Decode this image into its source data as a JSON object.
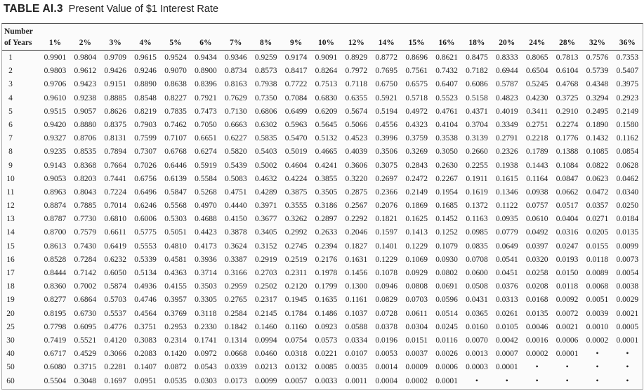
{
  "title": {
    "label": "TABLE AI.3",
    "text": "Present Value of $1 Interest Rate"
  },
  "table": {
    "years_header": {
      "line1": "Number",
      "line2": "of Years"
    },
    "rates": [
      "1%",
      "2%",
      "3%",
      "4%",
      "5%",
      "6%",
      "7%",
      "8%",
      "9%",
      "10%",
      "12%",
      "14%",
      "15%",
      "16%",
      "18%",
      "20%",
      "24%",
      "28%",
      "32%",
      "36%"
    ],
    "rows": [
      {
        "years": "1",
        "values": [
          "0.9901",
          "0.9804",
          "0.9709",
          "0.9615",
          "0.9524",
          "0.9434",
          "0.9346",
          "0.9259",
          "0.9174",
          "0.9091",
          "0.8929",
          "0.8772",
          "0.8696",
          "0.8621",
          "0.8475",
          "0.8333",
          "0.8065",
          "0.7813",
          "0.7576",
          "0.7353"
        ]
      },
      {
        "years": "2",
        "values": [
          "0.9803",
          "0.9612",
          "0.9426",
          "0.9246",
          "0.9070",
          "0.8900",
          "0.8734",
          "0.8573",
          "0.8417",
          "0.8264",
          "0.7972",
          "0.7695",
          "0.7561",
          "0.7432",
          "0.7182",
          "0.6944",
          "0.6504",
          "0.6104",
          "0.5739",
          "0.5407"
        ]
      },
      {
        "years": "3",
        "values": [
          "0.9706",
          "0.9423",
          "0.9151",
          "0.8890",
          "0.8638",
          "0.8396",
          "0.8163",
          "0.7938",
          "0.7722",
          "0.7513",
          "0.7118",
          "0.6750",
          "0.6575",
          "0.6407",
          "0.6086",
          "0.5787",
          "0.5245",
          "0.4768",
          "0.4348",
          "0.3975"
        ]
      },
      {
        "years": "4",
        "values": [
          "0.9610",
          "0.9238",
          "0.8885",
          "0.8548",
          "0.8227",
          "0.7921",
          "0.7629",
          "0.7350",
          "0.7084",
          "0.6830",
          "0.6355",
          "0.5921",
          "0.5718",
          "0.5523",
          "0.5158",
          "0.4823",
          "0.4230",
          "0.3725",
          "0.3294",
          "0.2923"
        ]
      },
      {
        "years": "5",
        "values": [
          "0.9515",
          "0.9057",
          "0.8626",
          "0.8219",
          "0.7835",
          "0.7473",
          "0.7130",
          "0.6806",
          "0.6499",
          "0.6209",
          "0.5674",
          "0.5194",
          "0.4972",
          "0.4761",
          "0.4371",
          "0.4019",
          "0.3411",
          "0.2910",
          "0.2495",
          "0.2149"
        ]
      },
      {
        "years": "6",
        "values": [
          "0.9420",
          "0.8880",
          "0.8375",
          "0.7903",
          "0.7462",
          "0.7050",
          "0.6663",
          "0.6302",
          "0.5963",
          "0.5645",
          "0.5066",
          "0.4556",
          "0.4323",
          "0.4104",
          "0.3704",
          "0.3349",
          "0.2751",
          "0.2274",
          "0.1890",
          "0.1580"
        ]
      },
      {
        "years": "7",
        "values": [
          "0.9327",
          "0.8706",
          "0.8131",
          "0.7599",
          "0.7107",
          "0.6651",
          "0.6227",
          "0.5835",
          "0.5470",
          "0.5132",
          "0.4523",
          "0.3996",
          "0.3759",
          "0.3538",
          "0.3139",
          "0.2791",
          "0.2218",
          "0.1776",
          "0.1432",
          "0.1162"
        ]
      },
      {
        "years": "8",
        "values": [
          "0.9235",
          "0.8535",
          "0.7894",
          "0.7307",
          "0.6768",
          "0.6274",
          "0.5820",
          "0.5403",
          "0.5019",
          "0.4665",
          "0.4039",
          "0.3506",
          "0.3269",
          "0.3050",
          "0.2660",
          "0.2326",
          "0.1789",
          "0.1388",
          "0.1085",
          "0.0854"
        ]
      },
      {
        "years": "9",
        "values": [
          "0.9143",
          "0.8368",
          "0.7664",
          "0.7026",
          "0.6446",
          "0.5919",
          "0.5439",
          "0.5002",
          "0.4604",
          "0.4241",
          "0.3606",
          "0.3075",
          "0.2843",
          "0.2630",
          "0.2255",
          "0.1938",
          "0.1443",
          "0.1084",
          "0.0822",
          "0.0628"
        ]
      },
      {
        "years": "10",
        "values": [
          "0.9053",
          "0.8203",
          "0.7441",
          "0.6756",
          "0.6139",
          "0.5584",
          "0.5083",
          "0.4632",
          "0.4224",
          "0.3855",
          "0.3220",
          "0.2697",
          "0.2472",
          "0.2267",
          "0.1911",
          "0.1615",
          "0.1164",
          "0.0847",
          "0.0623",
          "0.0462"
        ]
      },
      {
        "years": "11",
        "values": [
          "0.8963",
          "0.8043",
          "0.7224",
          "0.6496",
          "0.5847",
          "0.5268",
          "0.4751",
          "0.4289",
          "0.3875",
          "0.3505",
          "0.2875",
          "0.2366",
          "0.2149",
          "0.1954",
          "0.1619",
          "0.1346",
          "0.0938",
          "0.0662",
          "0.0472",
          "0.0340"
        ]
      },
      {
        "years": "12",
        "values": [
          "0.8874",
          "0.7885",
          "0.7014",
          "0.6246",
          "0.5568",
          "0.4970",
          "0.4440",
          "0.3971",
          "0.3555",
          "0.3186",
          "0.2567",
          "0.2076",
          "0.1869",
          "0.1685",
          "0.1372",
          "0.1122",
          "0.0757",
          "0.0517",
          "0.0357",
          "0.0250"
        ]
      },
      {
        "years": "13",
        "values": [
          "0.8787",
          "0.7730",
          "0.6810",
          "0.6006",
          "0.5303",
          "0.4688",
          "0.4150",
          "0.3677",
          "0.3262",
          "0.2897",
          "0.2292",
          "0.1821",
          "0.1625",
          "0.1452",
          "0.1163",
          "0.0935",
          "0.0610",
          "0.0404",
          "0.0271",
          "0.0184"
        ]
      },
      {
        "years": "14",
        "values": [
          "0.8700",
          "0.7579",
          "0.6611",
          "0.5775",
          "0.5051",
          "0.4423",
          "0.3878",
          "0.3405",
          "0.2992",
          "0.2633",
          "0.2046",
          "0.1597",
          "0.1413",
          "0.1252",
          "0.0985",
          "0.0779",
          "0.0492",
          "0.0316",
          "0.0205",
          "0.0135"
        ]
      },
      {
        "years": "15",
        "values": [
          "0.8613",
          "0.7430",
          "0.6419",
          "0.5553",
          "0.4810",
          "0.4173",
          "0.3624",
          "0.3152",
          "0.2745",
          "0.2394",
          "0.1827",
          "0.1401",
          "0.1229",
          "0.1079",
          "0.0835",
          "0.0649",
          "0.0397",
          "0.0247",
          "0.0155",
          "0.0099"
        ]
      },
      {
        "years": "16",
        "values": [
          "0.8528",
          "0.7284",
          "0.6232",
          "0.5339",
          "0.4581",
          "0.3936",
          "0.3387",
          "0.2919",
          "0.2519",
          "0.2176",
          "0.1631",
          "0.1229",
          "0.1069",
          "0.0930",
          "0.0708",
          "0.0541",
          "0.0320",
          "0.0193",
          "0.0118",
          "0.0073"
        ]
      },
      {
        "years": "17",
        "values": [
          "0.8444",
          "0.7142",
          "0.6050",
          "0.5134",
          "0.4363",
          "0.3714",
          "0.3166",
          "0.2703",
          "0.2311",
          "0.1978",
          "0.1456",
          "0.1078",
          "0.0929",
          "0.0802",
          "0.0600",
          "0.0451",
          "0.0258",
          "0.0150",
          "0.0089",
          "0.0054"
        ]
      },
      {
        "years": "18",
        "values": [
          "0.8360",
          "0.7002",
          "0.5874",
          "0.4936",
          "0.4155",
          "0.3503",
          "0.2959",
          "0.2502",
          "0.2120",
          "0.1799",
          "0.1300",
          "0.0946",
          "0.0808",
          "0.0691",
          "0.0508",
          "0.0376",
          "0.0208",
          "0.0118",
          "0.0068",
          "0.0038"
        ]
      },
      {
        "years": "19",
        "values": [
          "0.8277",
          "0.6864",
          "0.5703",
          "0.4746",
          "0.3957",
          "0.3305",
          "0.2765",
          "0.2317",
          "0.1945",
          "0.1635",
          "0.1161",
          "0.0829",
          "0.0703",
          "0.0596",
          "0.0431",
          "0.0313",
          "0.0168",
          "0.0092",
          "0.0051",
          "0.0029"
        ]
      },
      {
        "years": "20",
        "values": [
          "0.8195",
          "0.6730",
          "0.5537",
          "0.4564",
          "0.3769",
          "0.3118",
          "0.2584",
          "0.2145",
          "0.1784",
          "0.1486",
          "0.1037",
          "0.0728",
          "0.0611",
          "0.0514",
          "0.0365",
          "0.0261",
          "0.0135",
          "0.0072",
          "0.0039",
          "0.0021"
        ]
      },
      {
        "years": "25",
        "values": [
          "0.7798",
          "0.6095",
          "0.4776",
          "0.3751",
          "0.2953",
          "0.2330",
          "0.1842",
          "0.1460",
          "0.1160",
          "0.0923",
          "0.0588",
          "0.0378",
          "0.0304",
          "0.0245",
          "0.0160",
          "0.0105",
          "0.0046",
          "0.0021",
          "0.0010",
          "0.0005"
        ]
      },
      {
        "years": "30",
        "values": [
          "0.7419",
          "0.5521",
          "0.4120",
          "0.3083",
          "0.2314",
          "0.1741",
          "0.1314",
          "0.0994",
          "0.0754",
          "0.0573",
          "0.0334",
          "0.0196",
          "0.0151",
          "0.0116",
          "0.0070",
          "0.0042",
          "0.0016",
          "0.0006",
          "0.0002",
          "0.0001"
        ]
      },
      {
        "years": "40",
        "values": [
          "0.6717",
          "0.4529",
          "0.3066",
          "0.2083",
          "0.1420",
          "0.0972",
          "0.0668",
          "0.0460",
          "0.0318",
          "0.0221",
          "0.0107",
          "0.0053",
          "0.0037",
          "0.0026",
          "0.0013",
          "0.0007",
          "0.0002",
          "0.0001",
          "•",
          "•"
        ]
      },
      {
        "years": "50",
        "values": [
          "0.6080",
          "0.3715",
          "0.2281",
          "0.1407",
          "0.0872",
          "0.0543",
          "0.0339",
          "0.0213",
          "0.0132",
          "0.0085",
          "0.0035",
          "0.0014",
          "0.0009",
          "0.0006",
          "0.0003",
          "0.0001",
          "•",
          "•",
          "•",
          "•"
        ]
      },
      {
        "years": "60",
        "values": [
          "0.5504",
          "0.3048",
          "0.1697",
          "0.0951",
          "0.0535",
          "0.0303",
          "0.0173",
          "0.0099",
          "0.0057",
          "0.0033",
          "0.0011",
          "0.0004",
          "0.0002",
          "0.0001",
          "•",
          "•",
          "•",
          "•",
          "•",
          "•"
        ]
      }
    ]
  }
}
